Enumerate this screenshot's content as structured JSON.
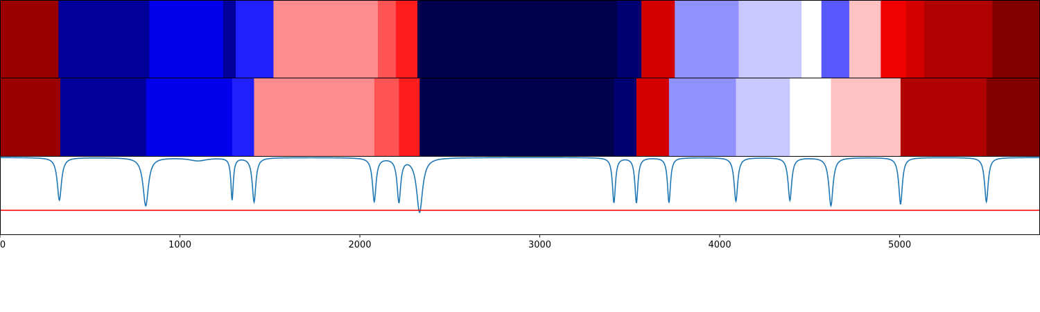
{
  "chart_data": [
    {
      "type": "heatmap",
      "panel": "segmentation-top",
      "xlim": [
        0,
        5780
      ],
      "colormap": "seismic",
      "segments": [
        {
          "start": 0,
          "end": 325,
          "color": "#990000"
        },
        {
          "start": 325,
          "end": 830,
          "color": "#000099"
        },
        {
          "start": 830,
          "end": 1240,
          "color": "#0000ea"
        },
        {
          "start": 1240,
          "end": 1310,
          "color": "#000099"
        },
        {
          "start": 1310,
          "end": 1520,
          "color": "#2020ff"
        },
        {
          "start": 1520,
          "end": 2100,
          "color": "#ff8c8c"
        },
        {
          "start": 2100,
          "end": 2200,
          "color": "#ff5454"
        },
        {
          "start": 2200,
          "end": 2320,
          "color": "#ff1c1c"
        },
        {
          "start": 2320,
          "end": 3430,
          "color": "#00004c"
        },
        {
          "start": 3430,
          "end": 3565,
          "color": "#000070"
        },
        {
          "start": 3565,
          "end": 3750,
          "color": "#d40000"
        },
        {
          "start": 3750,
          "end": 4105,
          "color": "#9090ff"
        },
        {
          "start": 4105,
          "end": 4455,
          "color": "#c8c8ff"
        },
        {
          "start": 4455,
          "end": 4565,
          "color": "#ffffff"
        },
        {
          "start": 4565,
          "end": 4720,
          "color": "#5858ff"
        },
        {
          "start": 4720,
          "end": 4895,
          "color": "#ffc2c2"
        },
        {
          "start": 4895,
          "end": 5035,
          "color": "#f00000"
        },
        {
          "start": 5035,
          "end": 5135,
          "color": "#d40000"
        },
        {
          "start": 5135,
          "end": 5515,
          "color": "#b10000"
        },
        {
          "start": 5515,
          "end": 5780,
          "color": "#800000"
        }
      ]
    },
    {
      "type": "heatmap",
      "panel": "segmentation-middle",
      "xlim": [
        0,
        5780
      ],
      "colormap": "seismic",
      "segments": [
        {
          "start": 0,
          "end": 335,
          "color": "#990000"
        },
        {
          "start": 335,
          "end": 812,
          "color": "#000099"
        },
        {
          "start": 812,
          "end": 1290,
          "color": "#0000ea"
        },
        {
          "start": 1290,
          "end": 1412,
          "color": "#2020ff"
        },
        {
          "start": 1412,
          "end": 2080,
          "color": "#ff8c8c"
        },
        {
          "start": 2080,
          "end": 2217,
          "color": "#ff5454"
        },
        {
          "start": 2217,
          "end": 2332,
          "color": "#ff1c1c"
        },
        {
          "start": 2332,
          "end": 3412,
          "color": "#00004c"
        },
        {
          "start": 3412,
          "end": 3537,
          "color": "#000070"
        },
        {
          "start": 3537,
          "end": 3718,
          "color": "#d40000"
        },
        {
          "start": 3718,
          "end": 4090,
          "color": "#9090ff"
        },
        {
          "start": 4090,
          "end": 4390,
          "color": "#c8c8ff"
        },
        {
          "start": 4390,
          "end": 4618,
          "color": "#ffffff"
        },
        {
          "start": 4618,
          "end": 5005,
          "color": "#ffc2c2"
        },
        {
          "start": 5005,
          "end": 5482,
          "color": "#b10000"
        },
        {
          "start": 5482,
          "end": 5780,
          "color": "#800000"
        }
      ]
    },
    {
      "type": "line",
      "panel": "score-profile",
      "xlim": [
        0,
        5780
      ],
      "ylim": [
        0,
        1
      ],
      "line_color": "#1f77b4",
      "baseline": 0.99,
      "dips": [
        {
          "x": 330,
          "depth": 0.55,
          "width": 14
        },
        {
          "x": 810,
          "depth": 0.62,
          "width": 18
        },
        {
          "x": 1100,
          "depth": 0.04,
          "width": 60
        },
        {
          "x": 1290,
          "depth": 0.54,
          "width": 8
        },
        {
          "x": 1412,
          "depth": 0.57,
          "width": 12
        },
        {
          "x": 2080,
          "depth": 0.56,
          "width": 12
        },
        {
          "x": 2217,
          "depth": 0.56,
          "width": 12
        },
        {
          "x": 2332,
          "depth": 0.7,
          "width": 20
        },
        {
          "x": 3412,
          "depth": 0.58,
          "width": 10
        },
        {
          "x": 3537,
          "depth": 0.58,
          "width": 10
        },
        {
          "x": 3718,
          "depth": 0.58,
          "width": 10
        },
        {
          "x": 4090,
          "depth": 0.56,
          "width": 12
        },
        {
          "x": 4390,
          "depth": 0.55,
          "width": 12
        },
        {
          "x": 4618,
          "depth": 0.62,
          "width": 14
        },
        {
          "x": 5005,
          "depth": 0.6,
          "width": 12
        },
        {
          "x": 5482,
          "depth": 0.57,
          "width": 12
        }
      ],
      "threshold": {
        "y": 0.31,
        "color": "#ff0000"
      },
      "xticks": [
        0,
        1000,
        2000,
        3000,
        4000,
        5000
      ]
    }
  ]
}
